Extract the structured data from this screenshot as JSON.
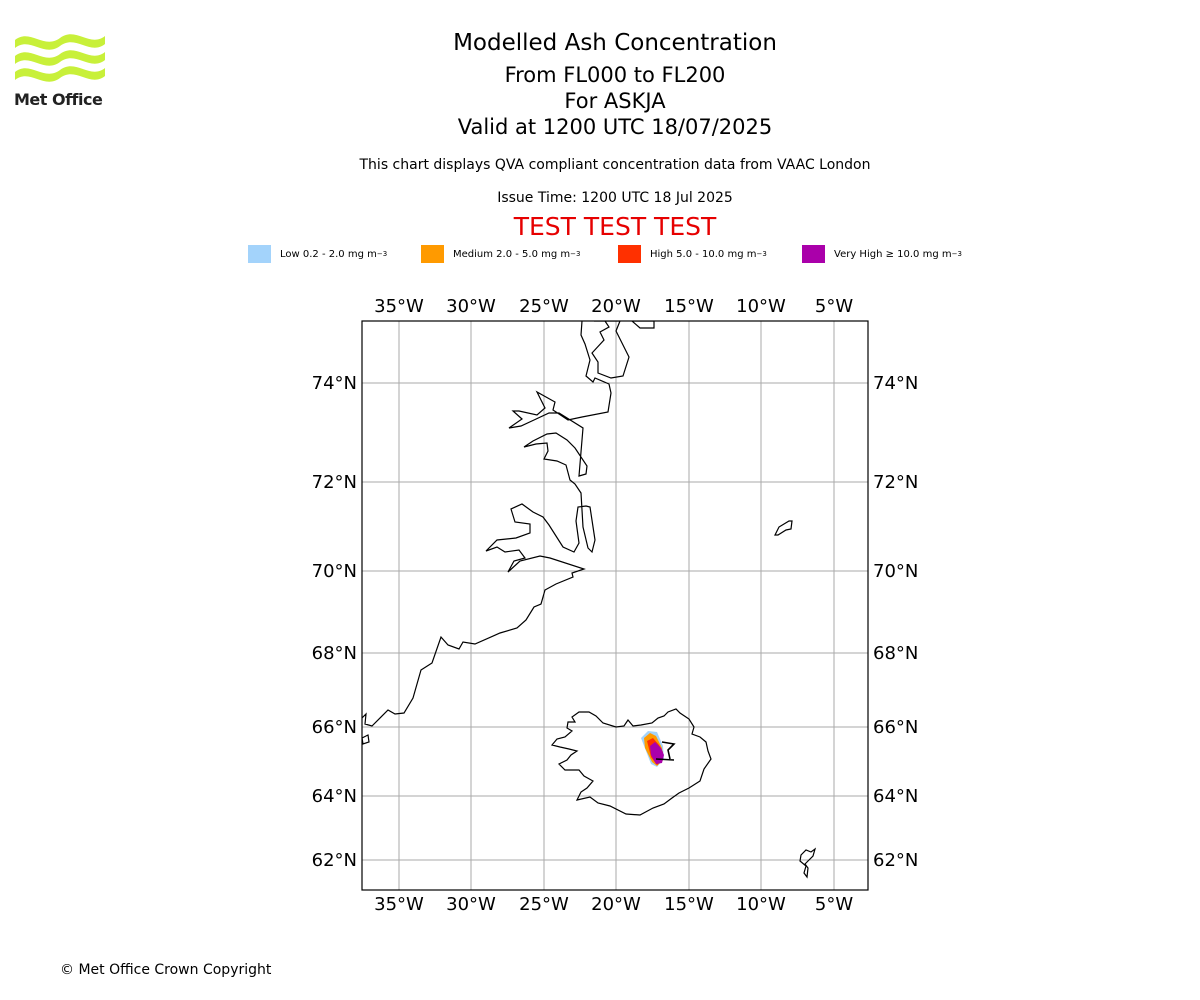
{
  "brand": {
    "name": "Met Office"
  },
  "header": {
    "title": "Modelled Ash Concentration",
    "levels": "From FL000 to FL200",
    "volcano": "For ASKJA",
    "valid": "Valid at 1200 UTC 18/07/2025",
    "subtitle": "This chart displays QVA compliant concentration data from VAAC London",
    "issue_time": "Issue Time: 1200 UTC 18 Jul 2025",
    "test_banner": "TEST TEST TEST"
  },
  "legend": [
    {
      "label": "Low 0.2 - 2.0 mg m",
      "exp": "−3",
      "color": "#a3d3fb"
    },
    {
      "label": "Medium 2.0 - 5.0 mg m",
      "exp": "−3",
      "color": "#ff9a00"
    },
    {
      "label": "High 5.0 - 10.0 mg m",
      "exp": "−3",
      "color": "#ff3000"
    },
    {
      "label": "Very High  ≥  10.0 mg m",
      "exp": "−3",
      "color": "#aa00aa"
    }
  ],
  "map": {
    "lon_ticks": [
      "35°W",
      "30°W",
      "25°W",
      "20°W",
      "15°W",
      "10°W",
      "5°W"
    ],
    "lat_ticks": [
      "74°N",
      "72°N",
      "70°N",
      "68°N",
      "66°N",
      "64°N",
      "62°N"
    ],
    "volcano_marker": "volcano-triangle-icon",
    "colors": {
      "coast": "#000000",
      "grid": "#aaaaaa"
    }
  },
  "footer": {
    "copyright": "© Met Office Crown Copyright"
  }
}
